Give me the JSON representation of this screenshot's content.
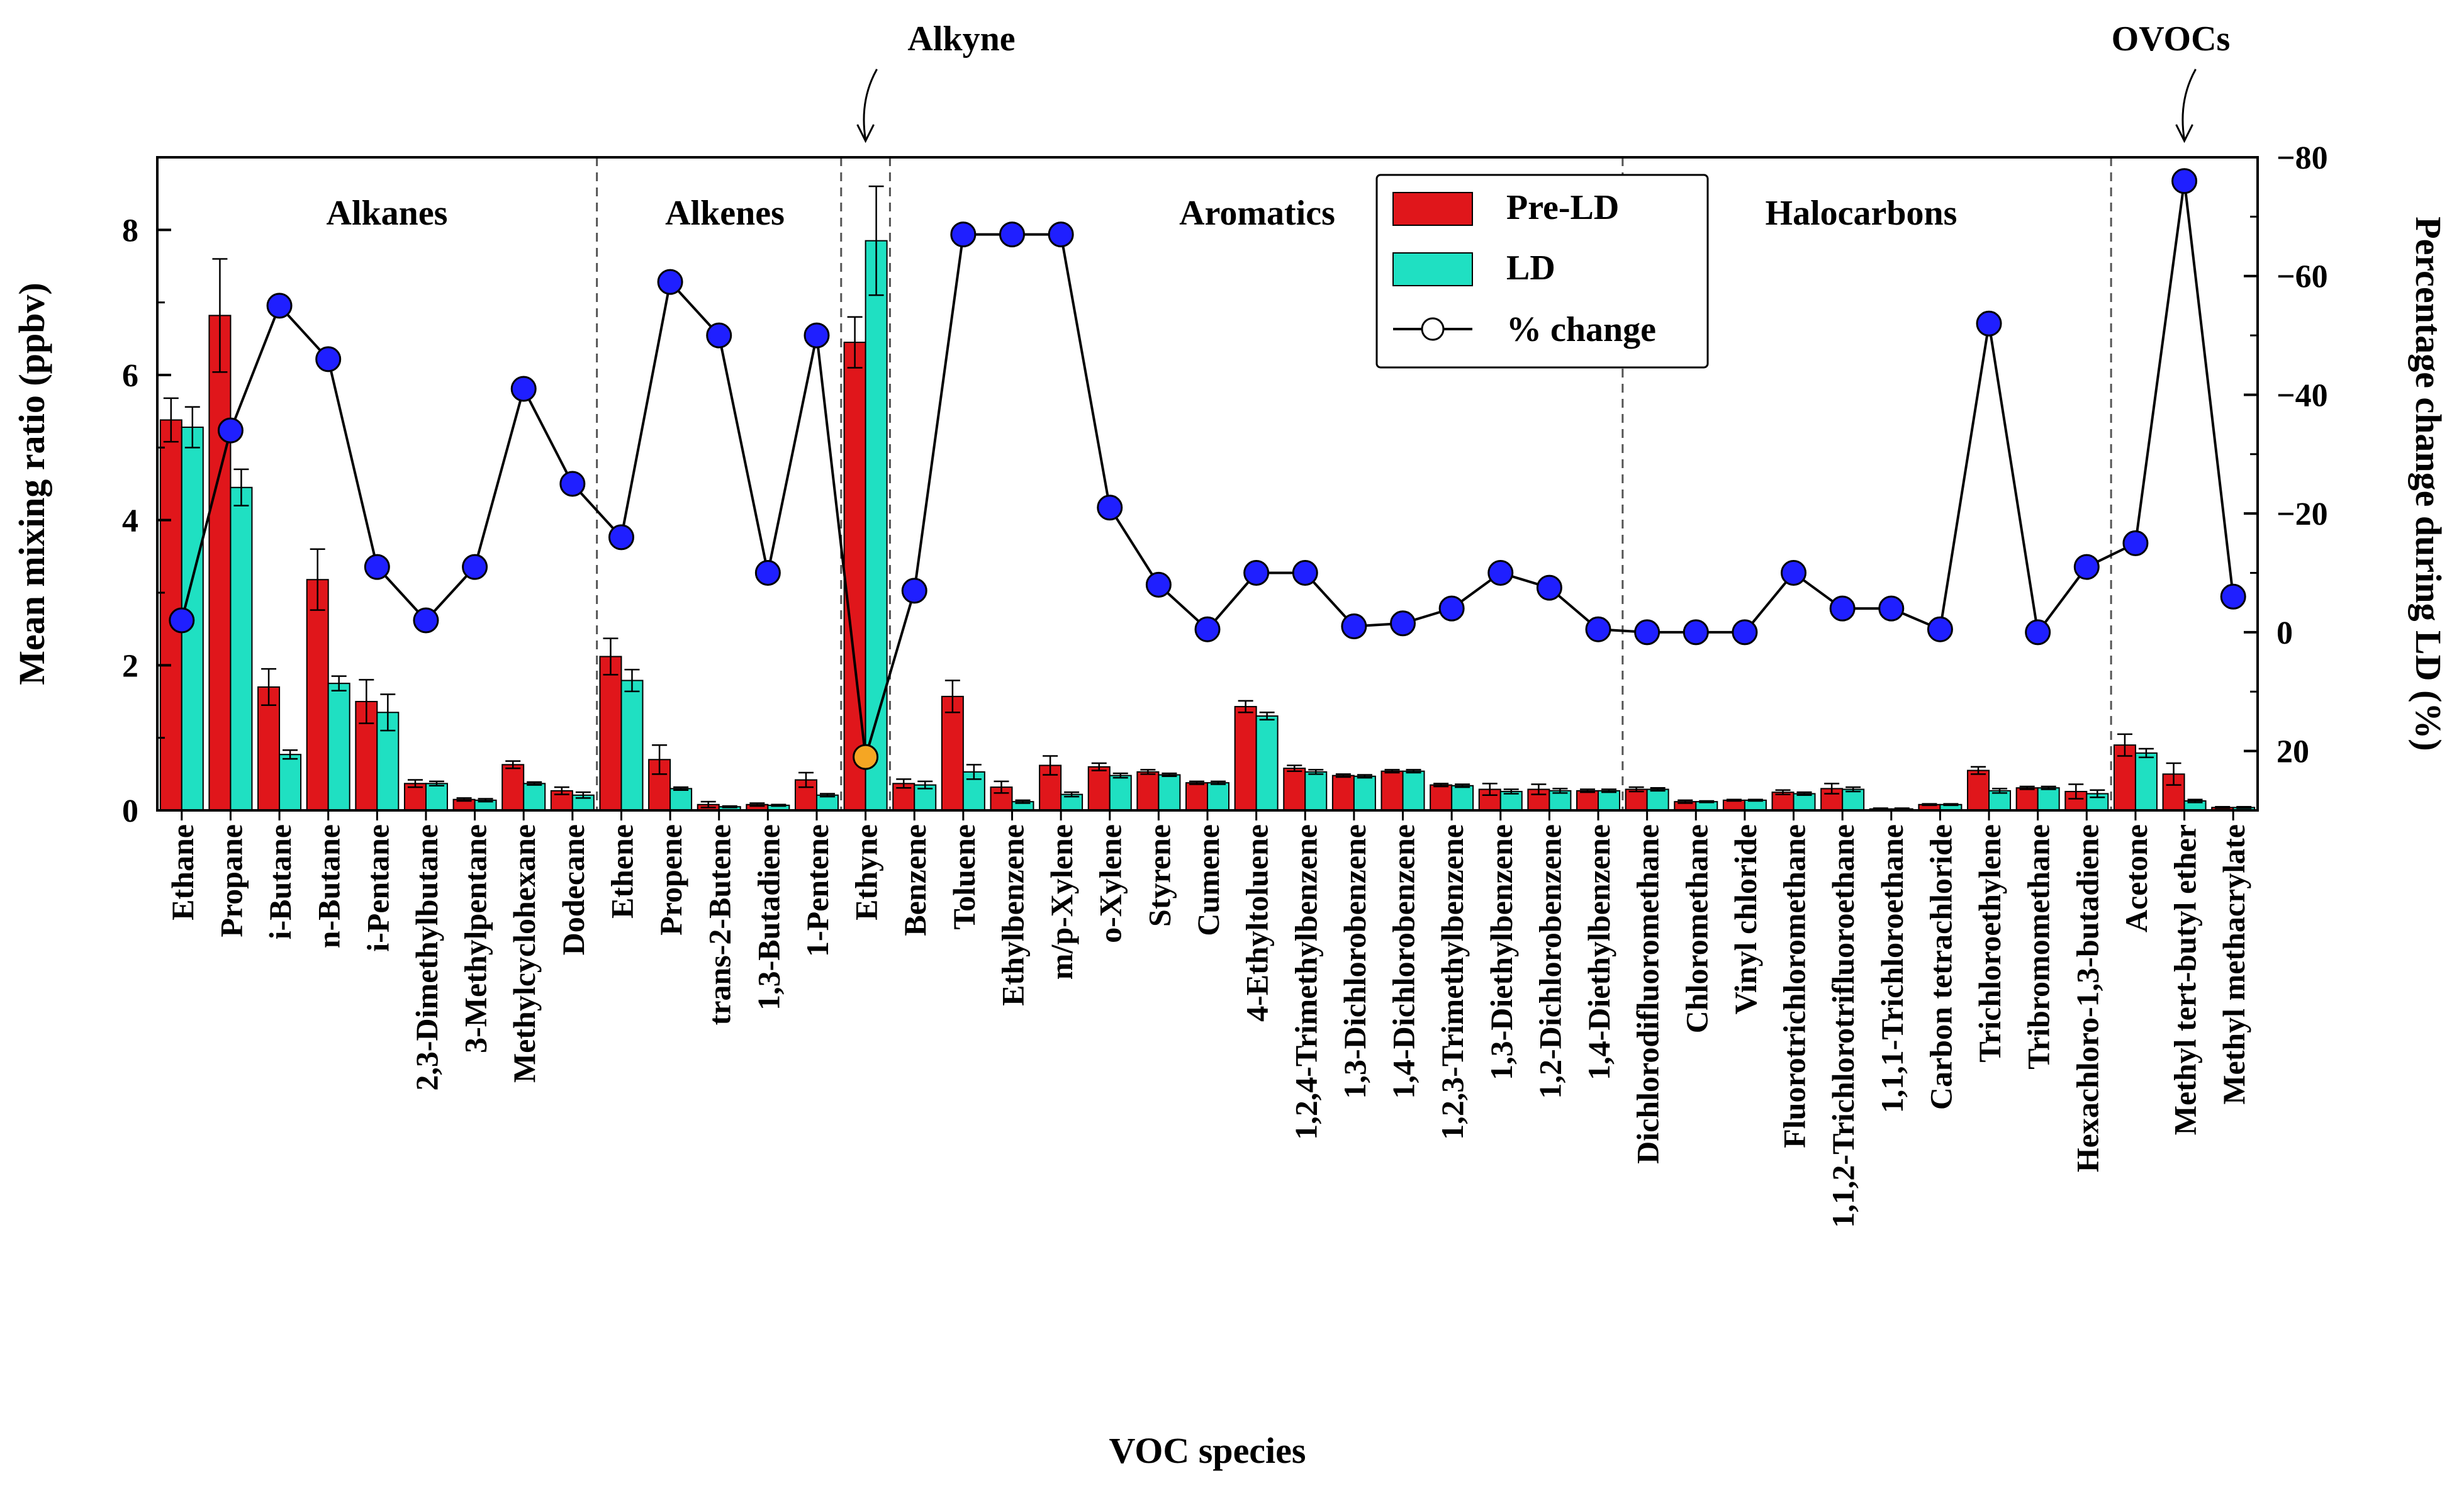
{
  "chart_data": {
    "type": "bar",
    "xlabel": "VOC species",
    "ylabel": "Mean mixing ratio (ppbv)",
    "ylabel_right": "Percentage change during LD (%)",
    "ylim": [
      0,
      9
    ],
    "yticks": [
      0,
      2,
      4,
      6,
      8
    ],
    "ylim_right": [
      30,
      -80
    ],
    "yticks_right": [
      20,
      0,
      -20,
      -40,
      -60,
      -80
    ],
    "colors": {
      "pre_ld": "#e0161b",
      "ld": "#1fe0c2",
      "marker": "#1f1fff",
      "marker_highlight": "#f5a623"
    },
    "categories": [
      "Ethane",
      "Propane",
      "i-Butane",
      "n-Butane",
      "i-Pentane",
      "2,3-Dimethylbutane",
      "3-Methylpentane",
      "Methylcyclohexane",
      "Dodecane",
      "Ethene",
      "Propene",
      "trans-2-Butene",
      "1,3-Butadiene",
      "1-Pentene",
      "Ethyne",
      "Benzene",
      "Toluene",
      "Ethylbenzene",
      "m/p-Xylene",
      "o-Xylene",
      "Styrene",
      "Cumene",
      "4-Ethyltoluene",
      "1,2,4-Trimethylbenzene",
      "1,3-Dichlorobenzene",
      "1,4-Dichlorobenzene",
      "1,2,3-Trimethylbenzene",
      "1,3-Diethylbenzene",
      "1,2-Dichlorobenzene",
      "1,4-Diethylbenzene",
      "Dichlorodifluoromethane",
      "Chloromethane",
      "Vinyl chloride",
      "Fluorotrichloromethane",
      "1,1,2-Trichlorotrifluoroethane",
      "1,1,1-Trichloroethane",
      "Carbon tetrachloride",
      "Trichloroethylene",
      "Tribromomethane",
      "Hexachloro-1,3-butadiene",
      "Acetone",
      "Methyl tert-butyl ether",
      "Methyl methacrylate"
    ],
    "series": [
      {
        "name": "Pre-LD",
        "values": [
          5.38,
          6.82,
          1.7,
          3.18,
          1.5,
          0.37,
          0.15,
          0.63,
          0.27,
          2.12,
          0.7,
          0.08,
          0.08,
          0.42,
          6.45,
          0.37,
          1.57,
          0.32,
          0.62,
          0.6,
          0.53,
          0.38,
          1.43,
          0.58,
          0.48,
          0.54,
          0.35,
          0.29,
          0.29,
          0.27,
          0.29,
          0.12,
          0.14,
          0.25,
          0.3,
          0.02,
          0.08,
          0.55,
          0.31,
          0.26,
          0.9,
          0.5,
          0.04
        ],
        "errors": [
          0.3,
          0.78,
          0.25,
          0.42,
          0.3,
          0.05,
          0.02,
          0.05,
          0.05,
          0.25,
          0.2,
          0.04,
          0.02,
          0.1,
          0.35,
          0.06,
          0.22,
          0.08,
          0.13,
          0.05,
          0.03,
          0.02,
          0.08,
          0.04,
          0.02,
          0.02,
          0.02,
          0.08,
          0.07,
          0.02,
          0.03,
          0.02,
          0.01,
          0.03,
          0.07,
          0.01,
          0.01,
          0.05,
          0.02,
          0.1,
          0.15,
          0.15,
          0.01
        ]
      },
      {
        "name": "LD",
        "values": [
          5.28,
          4.45,
          0.77,
          1.75,
          1.35,
          0.37,
          0.14,
          0.37,
          0.21,
          1.79,
          0.3,
          0.05,
          0.07,
          0.21,
          7.85,
          0.35,
          0.53,
          0.12,
          0.22,
          0.48,
          0.49,
          0.38,
          1.3,
          0.53,
          0.47,
          0.54,
          0.34,
          0.26,
          0.27,
          0.27,
          0.29,
          0.12,
          0.14,
          0.23,
          0.29,
          0.02,
          0.08,
          0.27,
          0.31,
          0.23,
          0.79,
          0.13,
          0.04
        ],
        "errors": [
          0.28,
          0.25,
          0.06,
          0.1,
          0.25,
          0.03,
          0.02,
          0.02,
          0.04,
          0.15,
          0.02,
          0.01,
          0.01,
          0.02,
          0.75,
          0.05,
          0.1,
          0.02,
          0.03,
          0.03,
          0.02,
          0.02,
          0.05,
          0.03,
          0.02,
          0.02,
          0.02,
          0.03,
          0.03,
          0.02,
          0.02,
          0.01,
          0.01,
          0.02,
          0.03,
          0.01,
          0.01,
          0.03,
          0.02,
          0.05,
          0.06,
          0.02,
          0.01
        ]
      },
      {
        "name": "% change",
        "values": [
          -2,
          -34,
          -55,
          -46,
          -11,
          -2,
          -11,
          -41,
          -25,
          -16,
          -59,
          -50,
          -10,
          -50,
          21,
          -7,
          -67,
          -67,
          -67,
          -21,
          -8,
          -0.5,
          -10,
          -10,
          -1,
          -1.5,
          -4,
          -10,
          -7.5,
          -0.5,
          0,
          0,
          0,
          -10,
          -4,
          -4,
          -0.5,
          -52,
          0,
          -11,
          -15,
          -76,
          -6
        ]
      }
    ],
    "highlight_index": 14,
    "groups": [
      {
        "label": "Alkanes"
      },
      {
        "label": "Alkenes"
      },
      {
        "label": "Aromatics"
      },
      {
        "label": "Halocarbons"
      }
    ],
    "callouts": [
      {
        "label": "Alkyne"
      },
      {
        "label": "OVOCs"
      }
    ],
    "legend": {
      "position": "top-center",
      "entries": [
        "Pre-LD",
        "LD",
        "% change"
      ]
    }
  }
}
